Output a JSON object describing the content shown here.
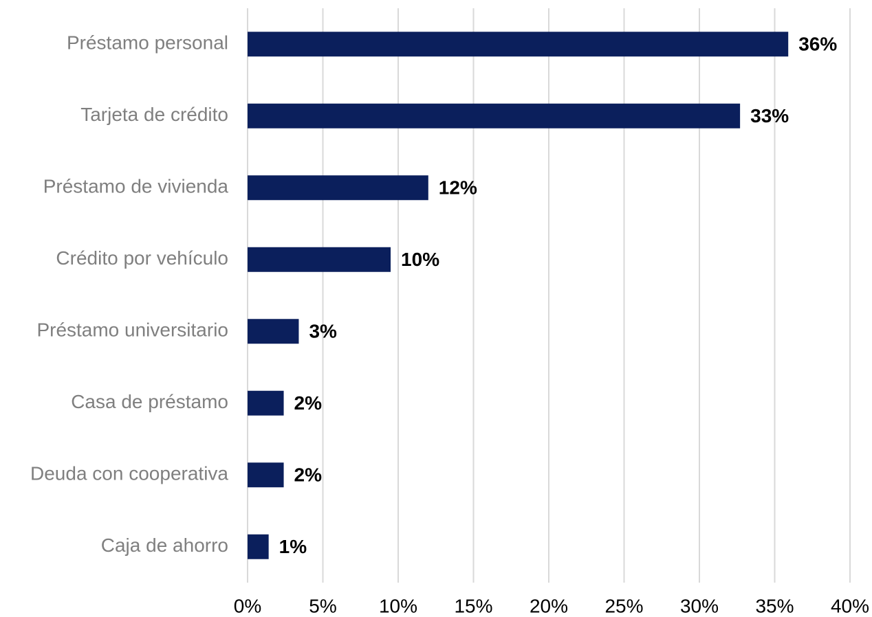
{
  "chart_data": {
    "type": "hbar",
    "categories": [
      "Préstamo personal",
      "Tarjeta de crédito",
      "Préstamo de vivienda",
      "Crédito por vehículo",
      "Préstamo universitario",
      "Casa de préstamo",
      "Deuda con cooperativa",
      "Caja de ahorro"
    ],
    "values": [
      35.9,
      32.7,
      12.0,
      9.5,
      3.4,
      2.4,
      2.4,
      1.4
    ],
    "value_labels": [
      "36%",
      "33%",
      "12%",
      "10%",
      "3%",
      "2%",
      "2%",
      "1%"
    ],
    "color": "#0b1f5c",
    "xlim": [
      0,
      40
    ],
    "xticks": [
      {
        "value": 0,
        "label": "0%"
      },
      {
        "value": 5,
        "label": "5%"
      },
      {
        "value": 10,
        "label": "10%"
      },
      {
        "value": 15,
        "label": "15%"
      },
      {
        "value": 20,
        "label": "20%"
      },
      {
        "value": 25,
        "label": "25%"
      },
      {
        "value": 30,
        "label": "30%"
      },
      {
        "value": 35,
        "label": "35%"
      },
      {
        "value": 40,
        "label": "40%"
      }
    ],
    "grid": true
  }
}
